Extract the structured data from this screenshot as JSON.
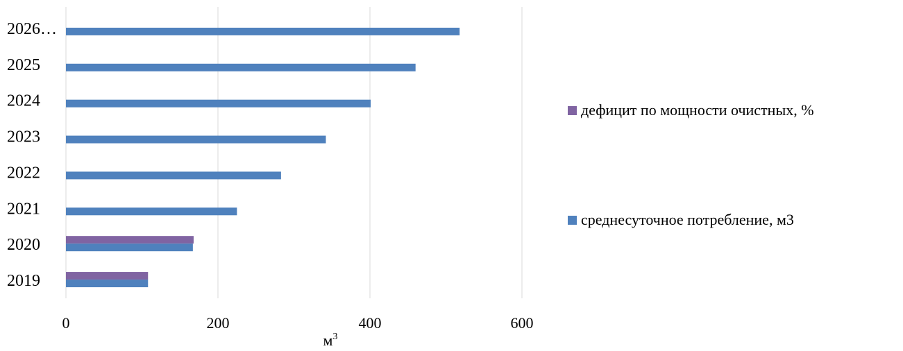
{
  "chart_data": {
    "type": "bar",
    "orientation": "horizontal",
    "categories": [
      "2019",
      "2020",
      "2021",
      "2022",
      "2023",
      "2024",
      "2025",
      "2026…"
    ],
    "series": [
      {
        "name": "среднесуточное потребление, м3",
        "color": "#4f81bd",
        "values": [
          108,
          167,
          225,
          283,
          342,
          401,
          460,
          518
        ]
      },
      {
        "name": "дефицит по мощности очистных, %",
        "color": "#8064a2",
        "values": [
          108,
          168,
          null,
          null,
          null,
          null,
          null,
          null
        ]
      }
    ],
    "xlim": [
      0,
      600
    ],
    "xticks": [
      "0",
      "200",
      "400",
      "600"
    ],
    "xlabel": "м",
    "xlabel_superscript": "3",
    "grid": true,
    "legend_position": "right"
  }
}
